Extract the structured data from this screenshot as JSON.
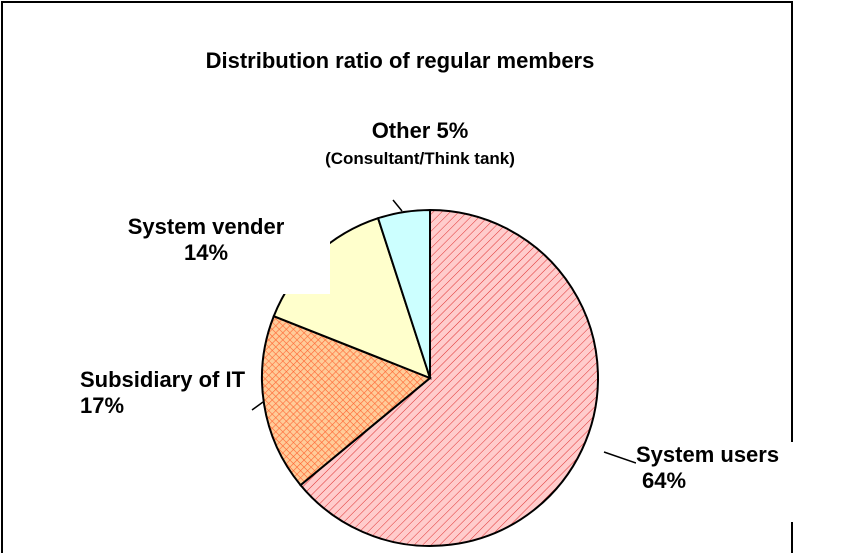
{
  "chart_data": {
    "type": "pie",
    "title": "Distribution ratio of regular members",
    "categories": [
      "System users",
      "Subsidiary of IT",
      "System vender",
      "Other"
    ],
    "values": [
      64,
      17,
      14,
      5
    ],
    "value_labels": [
      "64%",
      "17%",
      "14%",
      "5%"
    ],
    "colors": [
      "#ffcccc",
      "#ffcc99",
      "#ffffcc",
      "#ccffff"
    ],
    "annotation": "(Consultant/Think tank)"
  }
}
